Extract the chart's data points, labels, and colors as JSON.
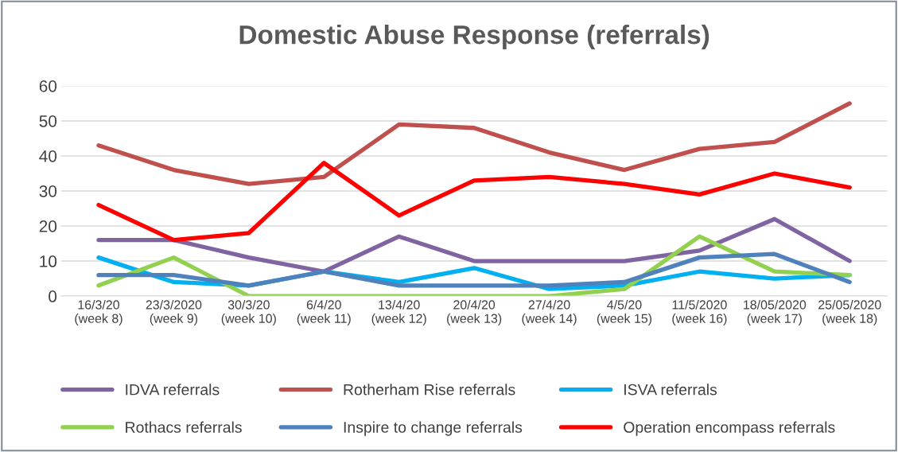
{
  "chart_data": {
    "type": "line",
    "title": "Domestic Abuse Response (referrals)",
    "categories": [
      "16/3/20\n(week 8)",
      "23/3/2020\n(week 9)",
      "30/3/20\n(week 10)",
      "6/4/20\n(week 11)",
      "13/4/20\n(week 12)",
      "20/4/20\n(week 13)",
      "27/4/20\n(week 14)",
      "4/5/20\n(week 15)",
      "11/5/2020\n(week 16)",
      "18/05/2020\n(week 17)",
      "25/05/2020\n(week 18)"
    ],
    "series": [
      {
        "name": "IDVA referrals",
        "color": "#8064a2",
        "values": [
          16,
          16,
          11,
          7,
          17,
          10,
          10,
          10,
          13,
          22,
          10
        ]
      },
      {
        "name": "Rotherham Rise referrals",
        "color": "#c0504d",
        "values": [
          43,
          36,
          32,
          34,
          49,
          48,
          41,
          36,
          42,
          44,
          55
        ]
      },
      {
        "name": "ISVA referrals",
        "color": "#00b0f0",
        "values": [
          11,
          4,
          3,
          7,
          4,
          8,
          2,
          3,
          7,
          5,
          6
        ]
      },
      {
        "name": "Rothacs referrals",
        "color": "#92d050",
        "values": [
          3,
          11,
          0,
          0,
          0,
          0,
          0,
          2,
          17,
          7,
          6
        ]
      },
      {
        "name": "Inspire to change referrals",
        "color": "#4f81bd",
        "values": [
          6,
          6,
          3,
          7,
          3,
          3,
          3,
          4,
          11,
          12,
          4
        ]
      },
      {
        "name": "Operation encompass referrals",
        "color": "#ff0000",
        "values": [
          26,
          16,
          18,
          38,
          23,
          33,
          34,
          32,
          29,
          35,
          31
        ]
      }
    ],
    "ylim": [
      0,
      60
    ],
    "yticks": [
      0,
      10,
      20,
      30,
      40,
      50,
      60
    ],
    "grid": "y",
    "legend": "bottom",
    "marker": "none",
    "line_style": "solid"
  }
}
